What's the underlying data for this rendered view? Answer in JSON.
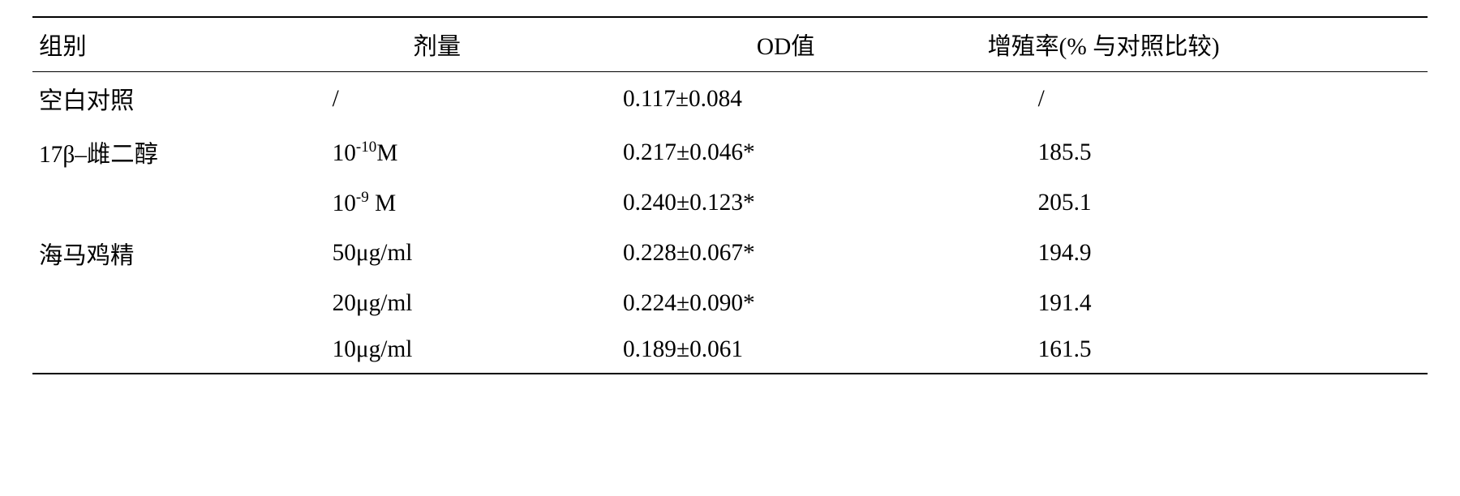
{
  "table": {
    "columns": {
      "group": "组别",
      "dose": "剂量",
      "od": "OD值",
      "rate": "增殖率(% 与对照比较)"
    },
    "rows": [
      {
        "group": "空白对照",
        "dose_html": "/",
        "od": "0.117±0.084",
        "rate": "/"
      },
      {
        "group": "17β–雌二醇",
        "dose_html": "10<sup>-10</sup>M",
        "od": "0.217±0.046*",
        "rate": "185.5"
      },
      {
        "group": "",
        "dose_html": "10<sup>-9</sup> M",
        "od": "0.240±0.123*",
        "rate": "205.1"
      },
      {
        "group": "海马鸡精",
        "dose_html": "50μg/ml",
        "od": "0.228±0.067*",
        "rate": "194.9"
      },
      {
        "group": "",
        "dose_html": "20μg/ml",
        "od": "0.224±0.090*",
        "rate": "191.4"
      },
      {
        "group": "",
        "dose_html": "10μg/ml",
        "od": "0.189±0.061",
        "rate": "161.5"
      }
    ],
    "style": {
      "font_size_pt": 22,
      "border_color": "#000000",
      "background": "#ffffff",
      "text_color": "#000000"
    }
  }
}
